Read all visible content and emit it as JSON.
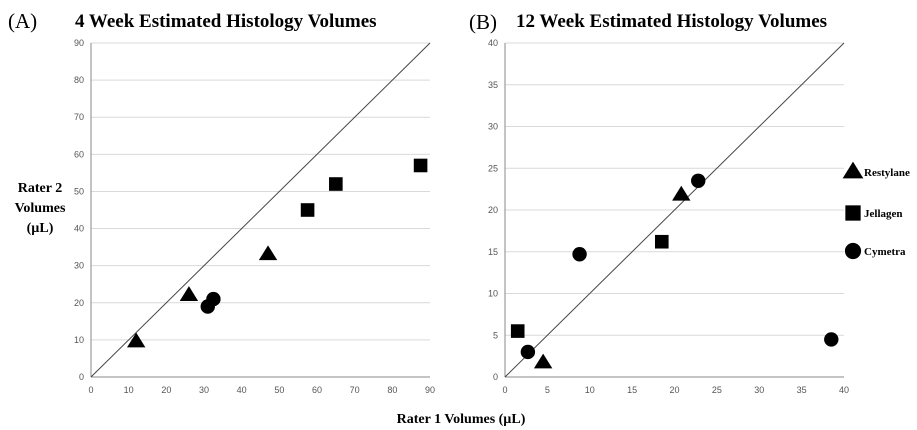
{
  "x_axis_label": "Rater 1 Volumes (µL)",
  "y_axis_label": [
    "Rater 2",
    "Volumes",
    "(µL)"
  ],
  "legend": [
    {
      "label": "Restylane",
      "marker": "triangle"
    },
    {
      "label": "Jellagen",
      "marker": "square"
    },
    {
      "label": "Cymetra",
      "marker": "circle"
    }
  ],
  "colors": {
    "marker": "#000000",
    "grid": "#d9d9d9",
    "axis": "#888888",
    "identity_line": "#444444"
  },
  "chart_data": [
    {
      "type": "scatter",
      "panel_label": "(A)",
      "title": "4 Week Estimated Histology Volumes",
      "xlim": [
        0,
        90
      ],
      "ylim": [
        0,
        90
      ],
      "x_ticks": [
        0,
        10,
        20,
        30,
        40,
        50,
        60,
        70,
        80,
        90
      ],
      "y_ticks": [
        0,
        10,
        20,
        30,
        40,
        50,
        60,
        70,
        80,
        90
      ],
      "grid": "horizontal",
      "identity_line": true,
      "series": [
        {
          "name": "Restylane",
          "marker": "triangle",
          "points": [
            [
              12,
              9.5
            ],
            [
              26,
              22
            ],
            [
              47,
              33
            ]
          ]
        },
        {
          "name": "Jellagen",
          "marker": "square",
          "points": [
            [
              57.5,
              45
            ],
            [
              65,
              52
            ],
            [
              87.5,
              57
            ]
          ]
        },
        {
          "name": "Cymetra",
          "marker": "circle",
          "points": [
            [
              31,
              19
            ],
            [
              32.5,
              21
            ]
          ]
        }
      ]
    },
    {
      "type": "scatter",
      "panel_label": "(B)",
      "title": "12 Week Estimated Histology Volumes",
      "xlim": [
        0,
        40
      ],
      "ylim": [
        0,
        40
      ],
      "x_ticks": [
        0,
        5,
        10,
        15,
        20,
        25,
        30,
        35,
        40
      ],
      "y_ticks": [
        0,
        5,
        10,
        15,
        20,
        25,
        30,
        35,
        40
      ],
      "grid": "horizontal",
      "identity_line": true,
      "series": [
        {
          "name": "Restylane",
          "marker": "triangle",
          "points": [
            [
              4.5,
              1.7
            ],
            [
              20.8,
              21.8
            ]
          ]
        },
        {
          "name": "Jellagen",
          "marker": "square",
          "points": [
            [
              1.5,
              5.5
            ],
            [
              18.5,
              16.2
            ]
          ]
        },
        {
          "name": "Cymetra",
          "marker": "circle",
          "points": [
            [
              2.7,
              3
            ],
            [
              8.8,
              14.7
            ],
            [
              22.8,
              23.5
            ],
            [
              38.5,
              4.5
            ]
          ]
        }
      ]
    }
  ]
}
